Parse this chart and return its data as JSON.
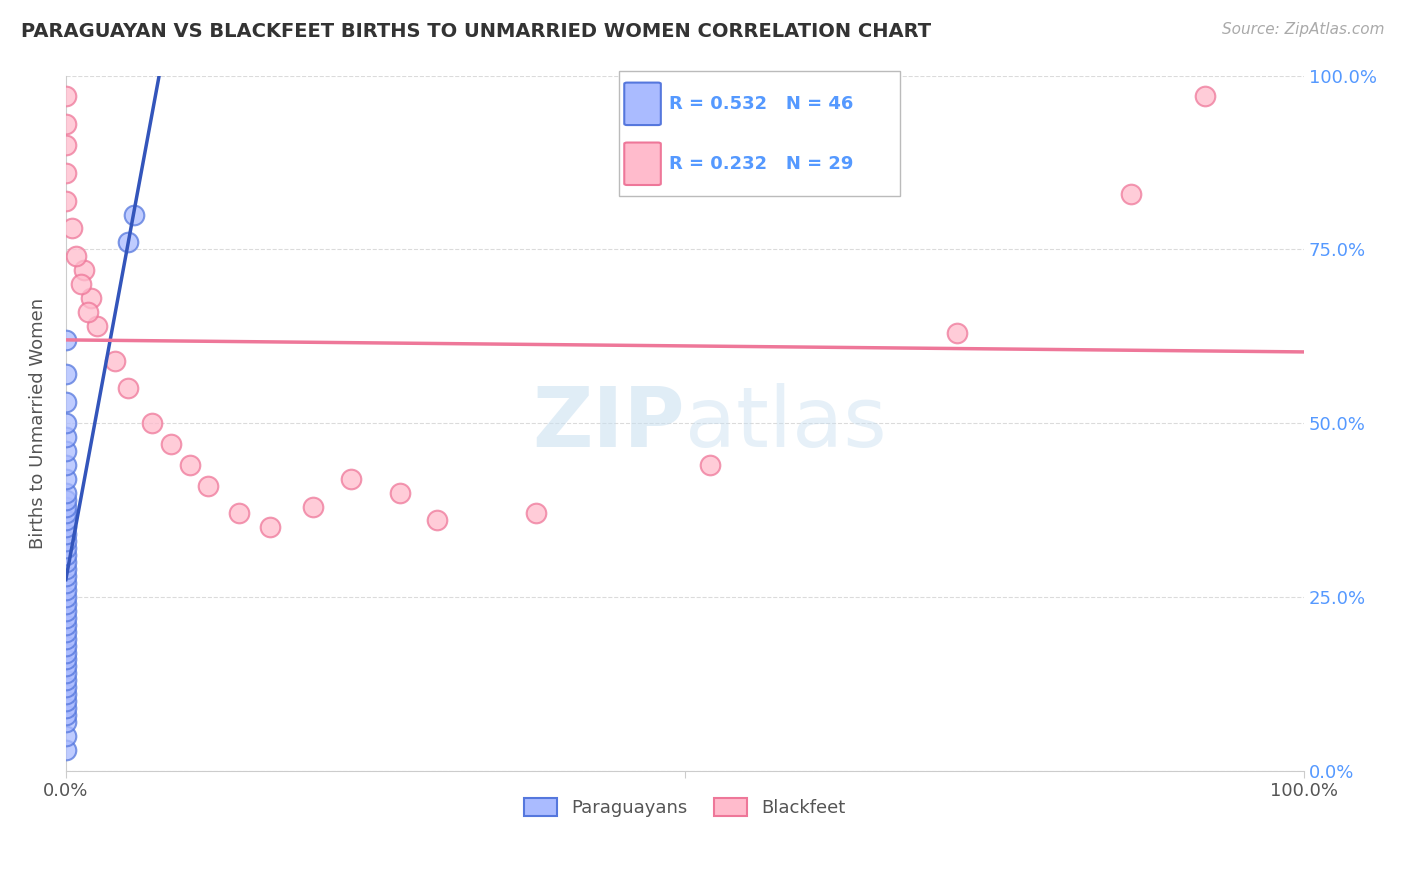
{
  "title": "PARAGUAYAN VS BLACKFEET BIRTHS TO UNMARRIED WOMEN CORRELATION CHART",
  "source": "Source: ZipAtlas.com",
  "ylabel": "Births to Unmarried Women",
  "legend_label1": "Paraguayans",
  "legend_label2": "Blackfeet",
  "R1_text": "R = 0.532",
  "N1_text": "N = 46",
  "R2_text": "R = 0.232",
  "N2_text": "N = 29",
  "blue_face": "#aabbff",
  "blue_edge": "#5577dd",
  "pink_face": "#ffbbcc",
  "pink_edge": "#ee7799",
  "blue_line": "#3355bb",
  "pink_line": "#ee7799",
  "bg": "#ffffff",
  "watermark_zip": "ZIP",
  "watermark_atlas": "atlas",
  "title_color": "#333333",
  "source_color": "#aaaaaa",
  "right_tick_color": "#5599ff",
  "label_color": "#555555",
  "grid_color": "#cccccc",
  "paraguayan_x": [
    0.0,
    0.0,
    0.0,
    0.0,
    0.0,
    0.0,
    0.0,
    0.0,
    0.0,
    0.0,
    0.0,
    0.0,
    0.0,
    0.0,
    0.0,
    0.0,
    0.0,
    0.0,
    0.0,
    0.0,
    0.0,
    0.0,
    0.0,
    0.0,
    0.0,
    0.0,
    0.0,
    0.0,
    0.0,
    0.0,
    0.0,
    0.0,
    0.0,
    0.0,
    0.0,
    0.0,
    0.0,
    0.0,
    0.0,
    0.0,
    0.0,
    0.0,
    0.0,
    0.0,
    0.05,
    0.055
  ],
  "paraguayan_y": [
    0.03,
    0.05,
    0.07,
    0.08,
    0.09,
    0.1,
    0.11,
    0.12,
    0.13,
    0.14,
    0.15,
    0.16,
    0.17,
    0.18,
    0.19,
    0.2,
    0.21,
    0.22,
    0.23,
    0.24,
    0.25,
    0.26,
    0.27,
    0.28,
    0.29,
    0.3,
    0.31,
    0.32,
    0.33,
    0.34,
    0.35,
    0.36,
    0.37,
    0.38,
    0.39,
    0.4,
    0.42,
    0.44,
    0.46,
    0.48,
    0.5,
    0.53,
    0.57,
    0.62,
    0.76,
    0.8
  ],
  "blackfeet_x": [
    0.0,
    0.0,
    0.0,
    0.0,
    0.0,
    0.015,
    0.02,
    0.025,
    0.04,
    0.05,
    0.07,
    0.085,
    0.1,
    0.115,
    0.14,
    0.165,
    0.2,
    0.23,
    0.27,
    0.3,
    0.38,
    0.52,
    0.72,
    0.86,
    0.92,
    0.005,
    0.008,
    0.012,
    0.018
  ],
  "blackfeet_y": [
    0.97,
    0.93,
    0.9,
    0.86,
    0.82,
    0.72,
    0.68,
    0.64,
    0.59,
    0.55,
    0.5,
    0.47,
    0.44,
    0.41,
    0.37,
    0.35,
    0.38,
    0.42,
    0.4,
    0.36,
    0.37,
    0.44,
    0.63,
    0.83,
    0.97,
    0.78,
    0.74,
    0.7,
    0.66
  ],
  "xlim": [
    0.0,
    1.0
  ],
  "ylim": [
    0.0,
    1.0
  ],
  "ytick_positions": [
    0.0,
    0.25,
    0.5,
    0.75,
    1.0
  ],
  "ytick_labels_right": [
    "0.0%",
    "25.0%",
    "50.0%",
    "75.0%",
    "100.0%"
  ],
  "xtick_positions": [
    0.0,
    0.5,
    1.0
  ],
  "xtick_labels": [
    "0.0%",
    "",
    "100.0%"
  ]
}
